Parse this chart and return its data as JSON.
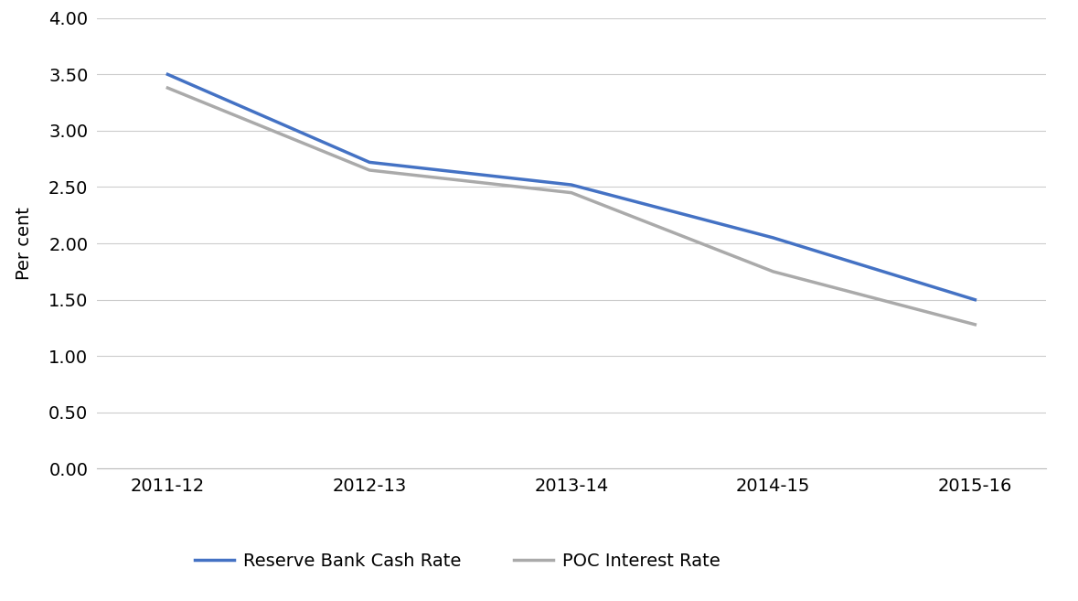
{
  "categories": [
    "2011-12",
    "2012-13",
    "2013-14",
    "2014-15",
    "2015-16"
  ],
  "reserve_bank_cash_rate": [
    3.5,
    2.72,
    2.52,
    2.05,
    1.5
  ],
  "poc_interest_rate": [
    3.38,
    2.65,
    2.45,
    1.75,
    1.28
  ],
  "reserve_bank_color": "#4472C4",
  "poc_color": "#AAAAAA",
  "reserve_bank_label": "Reserve Bank Cash Rate",
  "poc_label": "POC Interest Rate",
  "ylabel": "Per cent",
  "ylim": [
    0.0,
    4.0
  ],
  "yticks": [
    0.0,
    0.5,
    1.0,
    1.5,
    2.0,
    2.5,
    3.0,
    3.5,
    4.0
  ],
  "background_color": "#FFFFFF",
  "grid_color": "#CCCCCC",
  "line_width": 2.5,
  "figsize": [
    11.79,
    6.57
  ],
  "dpi": 100
}
